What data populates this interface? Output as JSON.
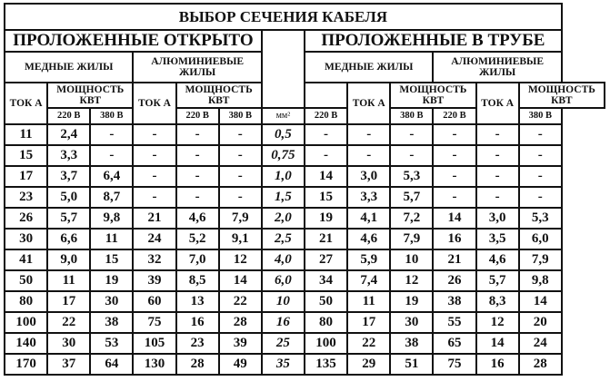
{
  "title": "ВЫБОР СЕЧЕНИЯ КАБЕЛЯ",
  "open_label": "ПРОЛОЖЕННЫЕ ОТКРЫТО",
  "pipe_label": "ПРОЛОЖЕННЫЕ В ТРУБЕ",
  "copper_label": "МЕДНЫЕ ЖИЛЫ",
  "aluminum_label": "АЛЮМИНИЕВЫЕ ЖИЛЫ",
  "current_label": "ТОК А",
  "power_label": "МОЩНОСТЬ КВТ",
  "v220": "220 В",
  "v380": "380 В",
  "mm2_label": "мм²",
  "columns": [
    "open_cu_current",
    "open_cu_220",
    "open_cu_380",
    "open_al_current",
    "open_al_220",
    "open_al_380",
    "section_mm2",
    "pipe_cu_current",
    "pipe_cu_220",
    "pipe_cu_380",
    "pipe_al_current",
    "pipe_al_220",
    "pipe_al_380"
  ],
  "rows": [
    [
      "11",
      "2,4",
      "-",
      "-",
      "-",
      "-",
      "0,5",
      "-",
      "-",
      "-",
      "-",
      "-",
      "-"
    ],
    [
      "15",
      "3,3",
      "-",
      "-",
      "-",
      "-",
      "0,75",
      "-",
      "-",
      "-",
      "-",
      "-",
      "-"
    ],
    [
      "17",
      "3,7",
      "6,4",
      "-",
      "-",
      "-",
      "1,0",
      "14",
      "3,0",
      "5,3",
      "-",
      "-",
      "-"
    ],
    [
      "23",
      "5,0",
      "8,7",
      "-",
      "-",
      "-",
      "1,5",
      "15",
      "3,3",
      "5,7",
      "-",
      "-",
      "-"
    ],
    [
      "26",
      "5,7",
      "9,8",
      "21",
      "4,6",
      "7,9",
      "2,0",
      "19",
      "4,1",
      "7,2",
      "14",
      "3,0",
      "5,3"
    ],
    [
      "30",
      "6,6",
      "11",
      "24",
      "5,2",
      "9,1",
      "2,5",
      "21",
      "4,6",
      "7,9",
      "16",
      "3,5",
      "6,0"
    ],
    [
      "41",
      "9,0",
      "15",
      "32",
      "7,0",
      "12",
      "4,0",
      "27",
      "5,9",
      "10",
      "21",
      "4,6",
      "7,9"
    ],
    [
      "50",
      "11",
      "19",
      "39",
      "8,5",
      "14",
      "6,0",
      "34",
      "7,4",
      "12",
      "26",
      "5,7",
      "9,8"
    ],
    [
      "80",
      "17",
      "30",
      "60",
      "13",
      "22",
      "10",
      "50",
      "11",
      "19",
      "38",
      "8,3",
      "14"
    ],
    [
      "100",
      "22",
      "38",
      "75",
      "16",
      "28",
      "16",
      "80",
      "17",
      "30",
      "55",
      "12",
      "20"
    ],
    [
      "140",
      "30",
      "53",
      "105",
      "23",
      "39",
      "25",
      "100",
      "22",
      "38",
      "65",
      "14",
      "24"
    ],
    [
      "170",
      "37",
      "64",
      "130",
      "28",
      "49",
      "35",
      "135",
      "29",
      "51",
      "75",
      "16",
      "28"
    ]
  ]
}
